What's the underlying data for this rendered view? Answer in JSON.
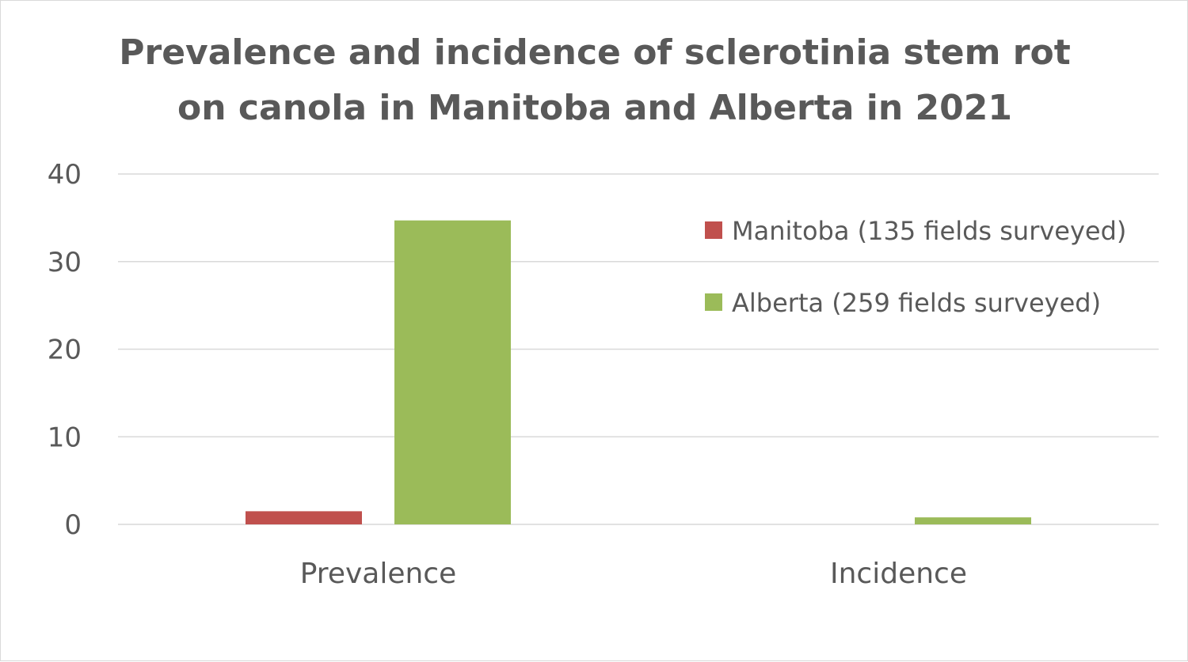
{
  "chart_data": {
    "type": "bar",
    "title_lines": [
      "Prevalence and incidence of sclerotinia stem rot",
      "on canola in Manitoba and Alberta in 2021"
    ],
    "categories": [
      "Prevalence",
      "Incidence"
    ],
    "series": [
      {
        "name": "Manitoba (135 fields surveyed)",
        "color": "#c0504d",
        "values": [
          1.5,
          0.0
        ]
      },
      {
        "name": "Alberta (259 fields surveyed)",
        "color": "#9bbb59",
        "values": [
          34.7,
          0.8
        ]
      }
    ],
    "yticks": [
      "0",
      "10",
      "20",
      "30",
      "40"
    ],
    "ylim": [
      0,
      40
    ],
    "grid": true,
    "legend_position": "top-right"
  }
}
